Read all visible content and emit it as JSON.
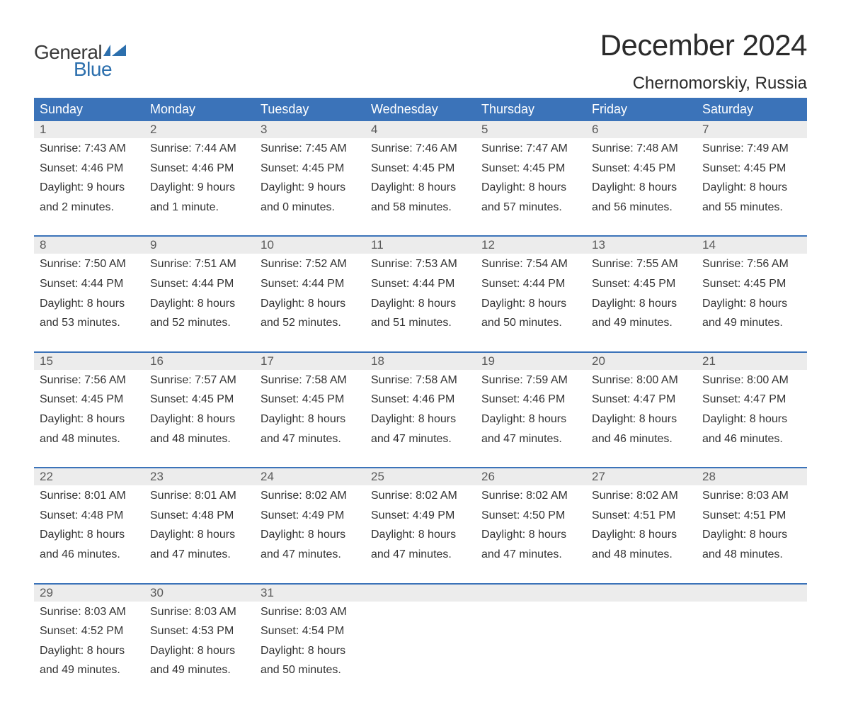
{
  "logo": {
    "text_general": "General",
    "text_blue": "Blue",
    "mark_color": "#2c6fad"
  },
  "title": "December 2024",
  "location": "Chernomorskiy, Russia",
  "colors": {
    "header_bg": "#3b73b9",
    "header_text": "#ffffff",
    "daynum_bg": "#ececec",
    "daynum_text": "#5a5a5a",
    "body_text": "#333333",
    "rule": "#3b73b9",
    "page_bg": "#ffffff"
  },
  "day_headers": [
    "Sunday",
    "Monday",
    "Tuesday",
    "Wednesday",
    "Thursday",
    "Friday",
    "Saturday"
  ],
  "weeks": [
    [
      {
        "n": "1",
        "sunrise": "Sunrise: 7:43 AM",
        "sunset": "Sunset: 4:46 PM",
        "d1": "Daylight: 9 hours",
        "d2": "and 2 minutes."
      },
      {
        "n": "2",
        "sunrise": "Sunrise: 7:44 AM",
        "sunset": "Sunset: 4:46 PM",
        "d1": "Daylight: 9 hours",
        "d2": "and 1 minute."
      },
      {
        "n": "3",
        "sunrise": "Sunrise: 7:45 AM",
        "sunset": "Sunset: 4:45 PM",
        "d1": "Daylight: 9 hours",
        "d2": "and 0 minutes."
      },
      {
        "n": "4",
        "sunrise": "Sunrise: 7:46 AM",
        "sunset": "Sunset: 4:45 PM",
        "d1": "Daylight: 8 hours",
        "d2": "and 58 minutes."
      },
      {
        "n": "5",
        "sunrise": "Sunrise: 7:47 AM",
        "sunset": "Sunset: 4:45 PM",
        "d1": "Daylight: 8 hours",
        "d2": "and 57 minutes."
      },
      {
        "n": "6",
        "sunrise": "Sunrise: 7:48 AM",
        "sunset": "Sunset: 4:45 PM",
        "d1": "Daylight: 8 hours",
        "d2": "and 56 minutes."
      },
      {
        "n": "7",
        "sunrise": "Sunrise: 7:49 AM",
        "sunset": "Sunset: 4:45 PM",
        "d1": "Daylight: 8 hours",
        "d2": "and 55 minutes."
      }
    ],
    [
      {
        "n": "8",
        "sunrise": "Sunrise: 7:50 AM",
        "sunset": "Sunset: 4:44 PM",
        "d1": "Daylight: 8 hours",
        "d2": "and 53 minutes."
      },
      {
        "n": "9",
        "sunrise": "Sunrise: 7:51 AM",
        "sunset": "Sunset: 4:44 PM",
        "d1": "Daylight: 8 hours",
        "d2": "and 52 minutes."
      },
      {
        "n": "10",
        "sunrise": "Sunrise: 7:52 AM",
        "sunset": "Sunset: 4:44 PM",
        "d1": "Daylight: 8 hours",
        "d2": "and 52 minutes."
      },
      {
        "n": "11",
        "sunrise": "Sunrise: 7:53 AM",
        "sunset": "Sunset: 4:44 PM",
        "d1": "Daylight: 8 hours",
        "d2": "and 51 minutes."
      },
      {
        "n": "12",
        "sunrise": "Sunrise: 7:54 AM",
        "sunset": "Sunset: 4:44 PM",
        "d1": "Daylight: 8 hours",
        "d2": "and 50 minutes."
      },
      {
        "n": "13",
        "sunrise": "Sunrise: 7:55 AM",
        "sunset": "Sunset: 4:45 PM",
        "d1": "Daylight: 8 hours",
        "d2": "and 49 minutes."
      },
      {
        "n": "14",
        "sunrise": "Sunrise: 7:56 AM",
        "sunset": "Sunset: 4:45 PM",
        "d1": "Daylight: 8 hours",
        "d2": "and 49 minutes."
      }
    ],
    [
      {
        "n": "15",
        "sunrise": "Sunrise: 7:56 AM",
        "sunset": "Sunset: 4:45 PM",
        "d1": "Daylight: 8 hours",
        "d2": "and 48 minutes."
      },
      {
        "n": "16",
        "sunrise": "Sunrise: 7:57 AM",
        "sunset": "Sunset: 4:45 PM",
        "d1": "Daylight: 8 hours",
        "d2": "and 48 minutes."
      },
      {
        "n": "17",
        "sunrise": "Sunrise: 7:58 AM",
        "sunset": "Sunset: 4:45 PM",
        "d1": "Daylight: 8 hours",
        "d2": "and 47 minutes."
      },
      {
        "n": "18",
        "sunrise": "Sunrise: 7:58 AM",
        "sunset": "Sunset: 4:46 PM",
        "d1": "Daylight: 8 hours",
        "d2": "and 47 minutes."
      },
      {
        "n": "19",
        "sunrise": "Sunrise: 7:59 AM",
        "sunset": "Sunset: 4:46 PM",
        "d1": "Daylight: 8 hours",
        "d2": "and 47 minutes."
      },
      {
        "n": "20",
        "sunrise": "Sunrise: 8:00 AM",
        "sunset": "Sunset: 4:47 PM",
        "d1": "Daylight: 8 hours",
        "d2": "and 46 minutes."
      },
      {
        "n": "21",
        "sunrise": "Sunrise: 8:00 AM",
        "sunset": "Sunset: 4:47 PM",
        "d1": "Daylight: 8 hours",
        "d2": "and 46 minutes."
      }
    ],
    [
      {
        "n": "22",
        "sunrise": "Sunrise: 8:01 AM",
        "sunset": "Sunset: 4:48 PM",
        "d1": "Daylight: 8 hours",
        "d2": "and 46 minutes."
      },
      {
        "n": "23",
        "sunrise": "Sunrise: 8:01 AM",
        "sunset": "Sunset: 4:48 PM",
        "d1": "Daylight: 8 hours",
        "d2": "and 47 minutes."
      },
      {
        "n": "24",
        "sunrise": "Sunrise: 8:02 AM",
        "sunset": "Sunset: 4:49 PM",
        "d1": "Daylight: 8 hours",
        "d2": "and 47 minutes."
      },
      {
        "n": "25",
        "sunrise": "Sunrise: 8:02 AM",
        "sunset": "Sunset: 4:49 PM",
        "d1": "Daylight: 8 hours",
        "d2": "and 47 minutes."
      },
      {
        "n": "26",
        "sunrise": "Sunrise: 8:02 AM",
        "sunset": "Sunset: 4:50 PM",
        "d1": "Daylight: 8 hours",
        "d2": "and 47 minutes."
      },
      {
        "n": "27",
        "sunrise": "Sunrise: 8:02 AM",
        "sunset": "Sunset: 4:51 PM",
        "d1": "Daylight: 8 hours",
        "d2": "and 48 minutes."
      },
      {
        "n": "28",
        "sunrise": "Sunrise: 8:03 AM",
        "sunset": "Sunset: 4:51 PM",
        "d1": "Daylight: 8 hours",
        "d2": "and 48 minutes."
      }
    ],
    [
      {
        "n": "29",
        "sunrise": "Sunrise: 8:03 AM",
        "sunset": "Sunset: 4:52 PM",
        "d1": "Daylight: 8 hours",
        "d2": "and 49 minutes."
      },
      {
        "n": "30",
        "sunrise": "Sunrise: 8:03 AM",
        "sunset": "Sunset: 4:53 PM",
        "d1": "Daylight: 8 hours",
        "d2": "and 49 minutes."
      },
      {
        "n": "31",
        "sunrise": "Sunrise: 8:03 AM",
        "sunset": "Sunset: 4:54 PM",
        "d1": "Daylight: 8 hours",
        "d2": "and 50 minutes."
      },
      null,
      null,
      null,
      null
    ]
  ]
}
